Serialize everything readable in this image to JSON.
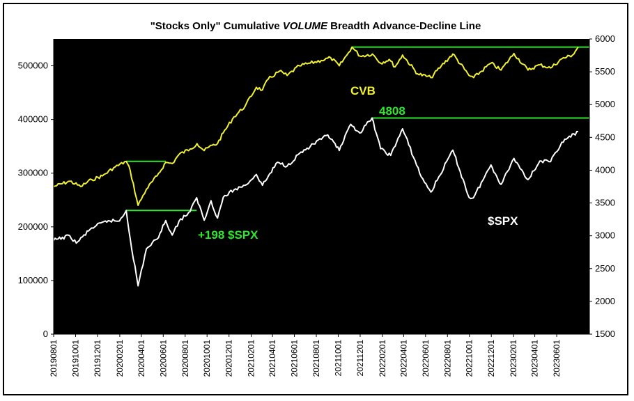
{
  "chart_data": {
    "type": "line",
    "title_parts": [
      "\"Stocks Only\" Cumulative ",
      "VOLUME",
      " Breadth Advance-Decline Line"
    ],
    "title": "\"Stocks Only\" Cumulative VOLUME Breadth Advance-Decline Line",
    "y_left": {
      "ylim": [
        0,
        550000
      ],
      "ticks": [
        0,
        100000,
        200000,
        300000,
        400000,
        500000
      ],
      "tick_labels": [
        "0",
        "100000",
        "200000",
        "300000",
        "400000",
        "500000"
      ]
    },
    "y_right": {
      "ylim": [
        1500,
        6000
      ],
      "ticks": [
        1500,
        2000,
        2500,
        3000,
        3500,
        4000,
        4500,
        5000,
        5500,
        6000
      ],
      "tick_labels": [
        "1500",
        "2000",
        "2500",
        "3000",
        "3500",
        "4000",
        "4500",
        "5000",
        "5500",
        "6000"
      ]
    },
    "x": {
      "start": "2019-08-01",
      "end": "2023-08-31",
      "tick_labels": [
        "20190801",
        "20191001",
        "20191201",
        "20200201",
        "20200401",
        "20200601",
        "20200801",
        "20201001",
        "20201201",
        "20210201",
        "20210401",
        "20210601",
        "20210801",
        "20211001",
        "20211201",
        "20220201",
        "20220401",
        "20220601",
        "20220801",
        "20221001",
        "20221201",
        "20230201",
        "20230401",
        "20230601"
      ]
    },
    "series": [
      {
        "name": "CVB",
        "axis": "left",
        "color": "#f2f22e",
        "points": [
          [
            "2019-08-01",
            275000
          ],
          [
            "2019-09-15",
            285000
          ],
          [
            "2019-10-15",
            275000
          ],
          [
            "2019-11-15",
            288000
          ],
          [
            "2019-12-15",
            295000
          ],
          [
            "2020-01-15",
            310000
          ],
          [
            "2020-02-19",
            322000
          ],
          [
            "2020-03-01",
            305000
          ],
          [
            "2020-03-23",
            240000
          ],
          [
            "2020-04-15",
            270000
          ],
          [
            "2020-05-15",
            295000
          ],
          [
            "2020-06-08",
            320000
          ],
          [
            "2020-06-26",
            318000
          ],
          [
            "2020-07-15",
            335000
          ],
          [
            "2020-08-15",
            345000
          ],
          [
            "2020-09-03",
            355000
          ],
          [
            "2020-09-23",
            342000
          ],
          [
            "2020-10-15",
            352000
          ],
          [
            "2020-10-30",
            355000
          ],
          [
            "2020-11-15",
            375000
          ],
          [
            "2020-12-15",
            405000
          ],
          [
            "2021-01-15",
            425000
          ],
          [
            "2021-02-15",
            460000
          ],
          [
            "2021-03-04",
            455000
          ],
          [
            "2021-03-20",
            475000
          ],
          [
            "2021-04-20",
            490000
          ],
          [
            "2021-05-12",
            482000
          ],
          [
            "2021-06-15",
            500000
          ],
          [
            "2021-07-15",
            505000
          ],
          [
            "2021-08-15",
            510000
          ],
          [
            "2021-09-10",
            515000
          ],
          [
            "2021-10-04",
            500000
          ],
          [
            "2021-10-25",
            520000
          ],
          [
            "2021-11-08",
            535000
          ],
          [
            "2021-12-01",
            518000
          ],
          [
            "2022-01-04",
            522000
          ],
          [
            "2022-01-27",
            505000
          ],
          [
            "2022-02-20",
            512000
          ],
          [
            "2022-03-08",
            498000
          ],
          [
            "2022-03-29",
            520000
          ],
          [
            "2022-05-10",
            485000
          ],
          [
            "2022-06-16",
            478000
          ],
          [
            "2022-07-15",
            500000
          ],
          [
            "2022-08-16",
            522000
          ],
          [
            "2022-09-30",
            482000
          ],
          [
            "2022-10-13",
            478000
          ],
          [
            "2022-11-30",
            505000
          ],
          [
            "2022-12-28",
            492000
          ],
          [
            "2023-02-02",
            523000
          ],
          [
            "2023-03-13",
            492000
          ],
          [
            "2023-04-15",
            502000
          ],
          [
            "2023-05-15",
            496000
          ],
          [
            "2023-06-15",
            513000
          ],
          [
            "2023-07-15",
            520000
          ],
          [
            "2023-07-31",
            535000
          ]
        ]
      },
      {
        "name": "$SPX",
        "axis": "right",
        "color": "#ffffff",
        "points": [
          [
            "2019-08-01",
            2930
          ],
          [
            "2019-09-15",
            3000
          ],
          [
            "2019-10-03",
            2887
          ],
          [
            "2019-11-15",
            3120
          ],
          [
            "2019-12-31",
            3230
          ],
          [
            "2020-01-31",
            3225
          ],
          [
            "2020-02-19",
            3386
          ],
          [
            "2020-03-01",
            2955
          ],
          [
            "2020-03-23",
            2237
          ],
          [
            "2020-04-15",
            2800
          ],
          [
            "2020-05-15",
            2950
          ],
          [
            "2020-06-08",
            3232
          ],
          [
            "2020-06-26",
            3010
          ],
          [
            "2020-07-15",
            3225
          ],
          [
            "2020-08-15",
            3370
          ],
          [
            "2020-09-02",
            3580
          ],
          [
            "2020-09-23",
            3237
          ],
          [
            "2020-10-12",
            3535
          ],
          [
            "2020-10-30",
            3270
          ],
          [
            "2020-11-15",
            3585
          ],
          [
            "2020-12-15",
            3700
          ],
          [
            "2021-01-15",
            3770
          ],
          [
            "2021-02-15",
            3935
          ],
          [
            "2021-03-04",
            3770
          ],
          [
            "2021-04-15",
            4120
          ],
          [
            "2021-05-12",
            4063
          ],
          [
            "2021-06-15",
            4255
          ],
          [
            "2021-07-15",
            4360
          ],
          [
            "2021-08-15",
            4470
          ],
          [
            "2021-09-02",
            4537
          ],
          [
            "2021-10-04",
            4300
          ],
          [
            "2021-11-05",
            4700
          ],
          [
            "2021-11-30",
            4567
          ],
          [
            "2022-01-03",
            4796
          ],
          [
            "2022-01-27",
            4326
          ],
          [
            "2022-02-24",
            4225
          ],
          [
            "2022-03-29",
            4631
          ],
          [
            "2022-05-20",
            3900
          ],
          [
            "2022-06-16",
            3666
          ],
          [
            "2022-08-16",
            4305
          ],
          [
            "2022-09-30",
            3585
          ],
          [
            "2022-10-12",
            3577
          ],
          [
            "2022-11-30",
            4080
          ],
          [
            "2022-12-28",
            3783
          ],
          [
            "2023-02-02",
            4180
          ],
          [
            "2023-03-13",
            3855
          ],
          [
            "2023-04-15",
            4140
          ],
          [
            "2023-05-15",
            4130
          ],
          [
            "2023-06-15",
            4425
          ],
          [
            "2023-07-31",
            4588
          ]
        ]
      }
    ],
    "reference_lines": [
      {
        "axis": "left",
        "value": 322000,
        "from": "2020-02-19",
        "to": "2020-06-08",
        "color": "#2ee62e"
      },
      {
        "axis": "right",
        "value": 3386,
        "from": "2020-02-19",
        "to": "2020-09-02",
        "color": "#2ee62e"
      },
      {
        "axis": "left",
        "value": 535000,
        "from": "2021-11-08",
        "to": "2023-08-31",
        "color": "#2ee62e"
      },
      {
        "axis": "right",
        "value": 4796,
        "from": "2022-01-03",
        "to": "2023-08-31",
        "color": "#2ee62e"
      }
    ],
    "annotations": [
      {
        "text": "CVB",
        "color": "#f2f22e"
      },
      {
        "text": "4808",
        "color": "#2ee62e"
      },
      {
        "text": "+198 $SPX",
        "color": "#2ee62e"
      },
      {
        "text": "$SPX",
        "color": "#ffffff"
      }
    ],
    "plot_background": "#000000",
    "grid": false,
    "legend": "none"
  }
}
